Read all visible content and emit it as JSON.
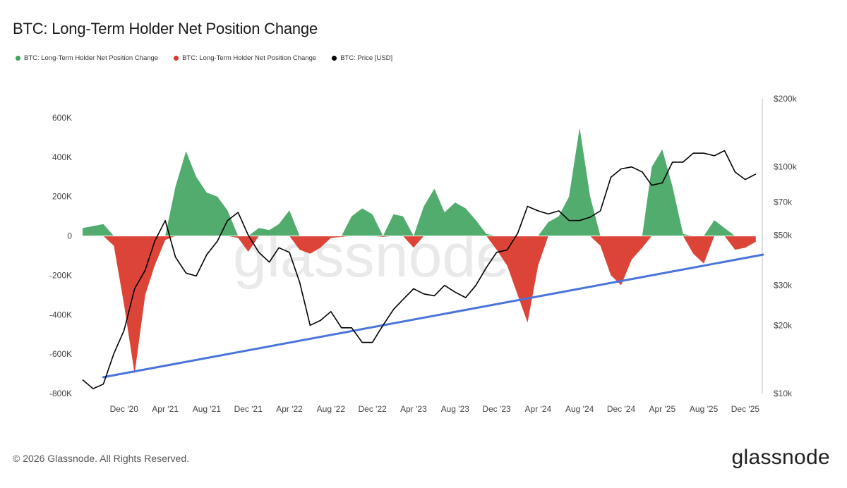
{
  "title": "BTC: Long-Term Holder Net Position Change",
  "legend": [
    {
      "label": "BTC: Long-Term Holder Net Position Change",
      "color": "#3fa35e"
    },
    {
      "label": "BTC: Long-Term Holder Net Position Change",
      "color": "#d93a2b"
    },
    {
      "label": "BTC: Price [USD]",
      "color": "#000000"
    }
  ],
  "footer": "© 2026 Glassnode. All Rights Reserved.",
  "logo": "glassnode",
  "watermark": "glassnode",
  "chart_data": {
    "type": "area",
    "x_ticks": [
      "Dec '20",
      "Apr '21",
      "Aug '21",
      "Dec '21",
      "Apr '22",
      "Aug '22",
      "Dec '22",
      "Apr '23",
      "Aug '23",
      "Dec '23",
      "Apr '24",
      "Aug '24",
      "Dec '24",
      "Apr '25",
      "Aug '25",
      "Dec '25"
    ],
    "y_left_ticks": [
      "600K",
      "400K",
      "200K",
      "0",
      "-200K",
      "-400K",
      "-600K",
      "-800K"
    ],
    "y_right_ticks": [
      "$200k",
      "$100k",
      "$70k",
      "$50k",
      "$30k",
      "$20k",
      "$10k"
    ],
    "ylim_left": [
      -800000,
      600000
    ],
    "ylim_right": [
      10000,
      200000
    ],
    "y_right_scale": "log",
    "positive_color": "#3fa35e",
    "negative_color": "#d93a2b",
    "price_color": "#000000",
    "trendline_color": "#4a74db",
    "net_position_change": {
      "x": [
        "2020-08-01",
        "2020-09-01",
        "2020-10-01",
        "2020-11-01",
        "2020-12-01",
        "2021-01-01",
        "2021-02-01",
        "2021-03-01",
        "2021-04-01",
        "2021-05-01",
        "2021-06-01",
        "2021-07-01",
        "2021-08-01",
        "2021-09-01",
        "2021-10-01",
        "2021-11-01",
        "2021-12-01",
        "2022-01-01",
        "2022-02-01",
        "2022-03-01",
        "2022-04-01",
        "2022-05-01",
        "2022-06-01",
        "2022-07-01",
        "2022-08-01",
        "2022-09-01",
        "2022-10-01",
        "2022-11-01",
        "2022-12-01",
        "2023-01-01",
        "2023-02-01",
        "2023-03-01",
        "2023-04-01",
        "2023-05-01",
        "2023-06-01",
        "2023-07-01",
        "2023-08-01",
        "2023-09-01",
        "2023-10-01",
        "2023-11-01",
        "2023-12-01",
        "2024-01-01",
        "2024-02-01",
        "2024-03-01",
        "2024-04-01",
        "2024-05-01",
        "2024-06-01",
        "2024-07-01",
        "2024-08-01",
        "2024-09-01",
        "2024-10-01",
        "2024-11-01",
        "2024-12-01",
        "2025-01-01",
        "2025-02-01",
        "2025-03-01",
        "2025-04-01",
        "2025-05-01",
        "2025-06-01",
        "2025-07-01",
        "2025-08-01",
        "2025-09-01",
        "2025-10-01",
        "2025-11-01",
        "2025-12-01",
        "2026-01-01"
      ],
      "values": [
        40000,
        50000,
        60000,
        -50000,
        -350000,
        -700000,
        -300000,
        -150000,
        -20000,
        250000,
        430000,
        300000,
        220000,
        200000,
        130000,
        -10000,
        -80000,
        40000,
        30000,
        60000,
        130000,
        -70000,
        -90000,
        -60000,
        -10000,
        -5000,
        100000,
        140000,
        110000,
        -5000,
        110000,
        100000,
        -60000,
        150000,
        240000,
        120000,
        170000,
        140000,
        80000,
        10000,
        -70000,
        -150000,
        -300000,
        -440000,
        -150000,
        70000,
        100000,
        200000,
        550000,
        200000,
        -50000,
        -200000,
        -250000,
        -120000,
        -60000,
        350000,
        440000,
        250000,
        10000,
        -90000,
        -140000,
        80000,
        40000,
        -70000,
        -60000,
        -30000
      ]
    },
    "price_usd": {
      "x": [
        "2020-08-01",
        "2020-09-01",
        "2020-10-01",
        "2020-11-01",
        "2020-12-01",
        "2021-01-01",
        "2021-02-01",
        "2021-03-01",
        "2021-04-01",
        "2021-05-01",
        "2021-06-01",
        "2021-07-01",
        "2021-08-01",
        "2021-09-01",
        "2021-10-01",
        "2021-11-01",
        "2021-12-01",
        "2022-01-01",
        "2022-02-01",
        "2022-03-01",
        "2022-04-01",
        "2022-05-01",
        "2022-06-01",
        "2022-07-01",
        "2022-08-01",
        "2022-09-01",
        "2022-10-01",
        "2022-11-01",
        "2022-12-01",
        "2023-01-01",
        "2023-02-01",
        "2023-03-01",
        "2023-04-01",
        "2023-05-01",
        "2023-06-01",
        "2023-07-01",
        "2023-08-01",
        "2023-09-01",
        "2023-10-01",
        "2023-11-01",
        "2023-12-01",
        "2024-01-01",
        "2024-02-01",
        "2024-03-01",
        "2024-04-01",
        "2024-05-01",
        "2024-06-01",
        "2024-07-01",
        "2024-08-01",
        "2024-09-01",
        "2024-10-01",
        "2024-11-01",
        "2024-12-01",
        "2025-01-01",
        "2025-02-01",
        "2025-03-01",
        "2025-04-01",
        "2025-05-01",
        "2025-06-01",
        "2025-07-01",
        "2025-08-01",
        "2025-09-01",
        "2025-10-01",
        "2025-11-01",
        "2025-12-01",
        "2026-01-01"
      ],
      "values": [
        11500,
        10500,
        11000,
        15000,
        19000,
        29000,
        35000,
        47000,
        58000,
        40000,
        34000,
        33000,
        41000,
        47000,
        58000,
        63000,
        50000,
        42000,
        38000,
        44000,
        42000,
        31000,
        20000,
        21000,
        23000,
        19500,
        19500,
        16800,
        16800,
        20000,
        23500,
        26000,
        29000,
        27500,
        27000,
        30000,
        28000,
        26500,
        30000,
        36000,
        42000,
        43000,
        51000,
        67000,
        64000,
        62000,
        64000,
        58000,
        58000,
        60000,
        64000,
        90000,
        98000,
        100000,
        95000,
        83000,
        85000,
        105000,
        105000,
        115000,
        115000,
        112000,
        118000,
        95000,
        88000,
        93000
      ]
    },
    "trendline_price": {
      "x": [
        "2020-10-01",
        "2026-01-01"
      ],
      "values": [
        11800,
        41000
      ]
    }
  }
}
